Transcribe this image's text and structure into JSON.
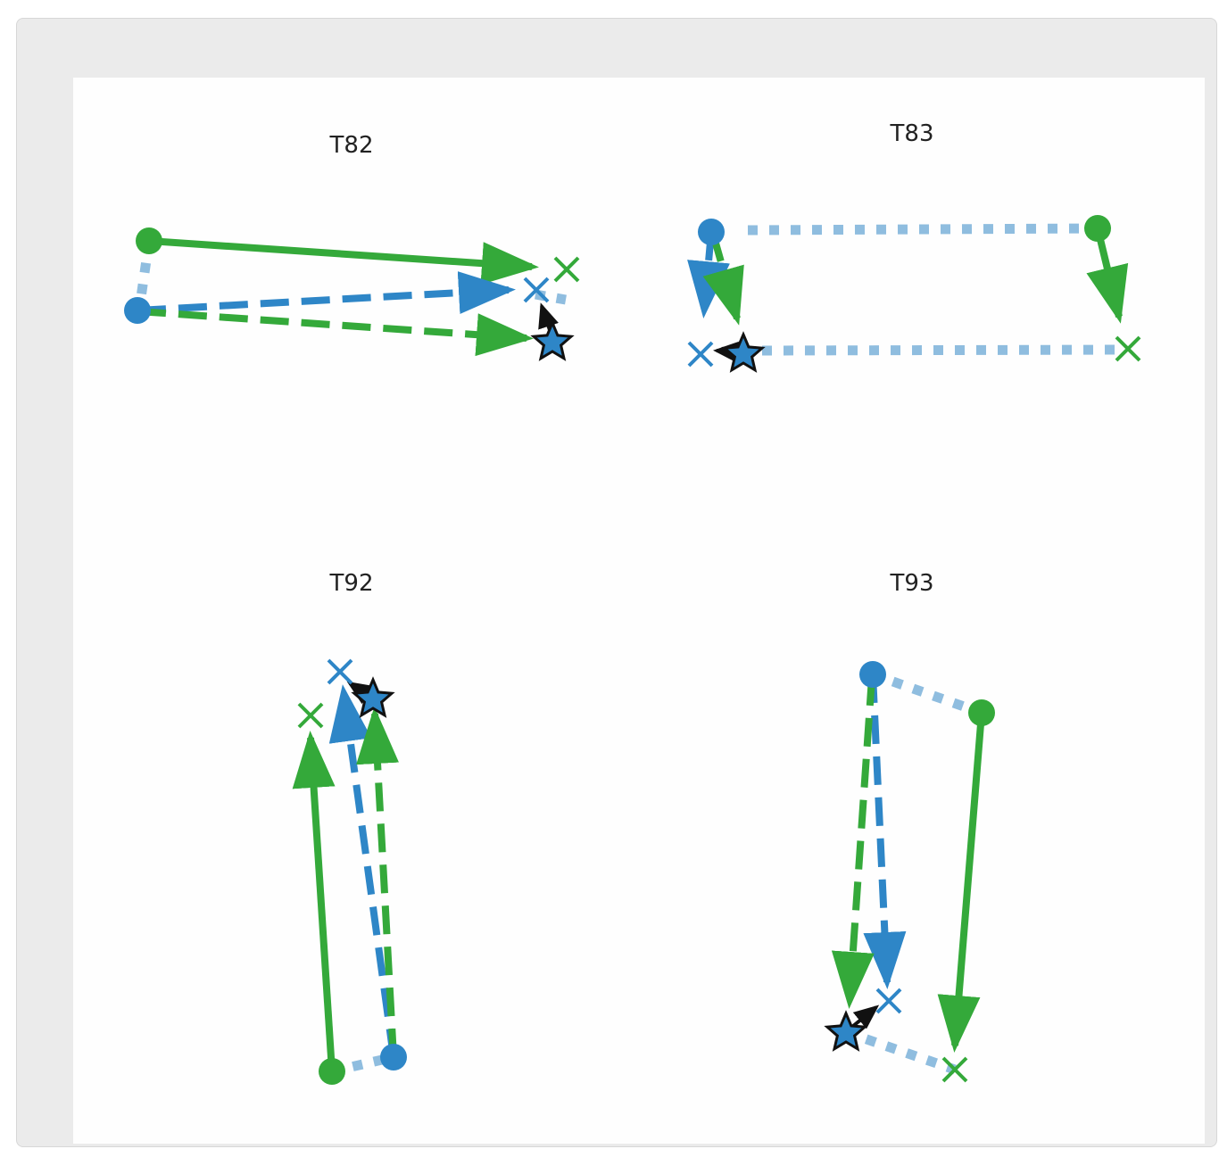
{
  "colors": {
    "blue": "#2e86c7",
    "green": "#34a93a",
    "light_blue": "#8fbddf",
    "black": "#111111"
  },
  "panels": [
    {
      "id": "t82",
      "title": "T82"
    },
    {
      "id": "t83",
      "title": "T83"
    },
    {
      "id": "t92",
      "title": "T92"
    },
    {
      "id": "t93",
      "title": "T93"
    }
  ]
}
